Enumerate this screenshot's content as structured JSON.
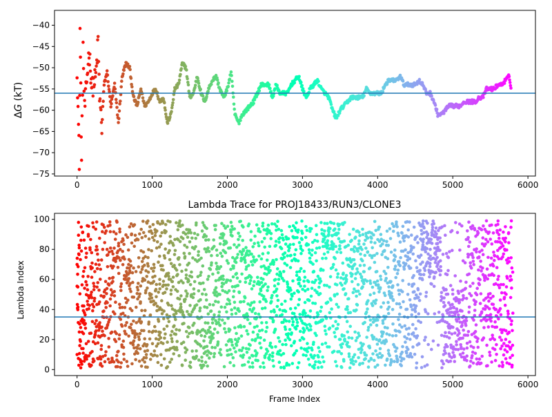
{
  "chart_data": [
    {
      "type": "scatter",
      "title": "",
      "xlabel": "",
      "ylabel": "ΔG (kT)",
      "xlim": [
        -300,
        6100
      ],
      "ylim": [
        -75.5,
        -36.5
      ],
      "x_ticks": [
        0,
        1000,
        2000,
        3000,
        4000,
        5000,
        6000
      ],
      "y_ticks": [
        -75,
        -70,
        -65,
        -60,
        -55,
        -50,
        -45,
        -40
      ],
      "x_tick_labels": [
        "0",
        "1000",
        "2000",
        "3000",
        "4000",
        "5000",
        "6000"
      ],
      "y_tick_labels": [
        "−75",
        "−70",
        "−65",
        "−60",
        "−55",
        "−50",
        "−45",
        "−40"
      ],
      "reference_line": -56,
      "colormap": "rainbow (red at frame 0 → violet at last frame)",
      "frames": 5800,
      "trace_points": [
        [
          0,
          -50
        ],
        [
          20,
          -64
        ],
        [
          30,
          -72
        ],
        [
          40,
          -41
        ],
        [
          50,
          -55
        ],
        [
          60,
          -73
        ],
        [
          80,
          -45
        ],
        [
          100,
          -60
        ],
        [
          130,
          -53
        ],
        [
          160,
          -46
        ],
        [
          200,
          -55
        ],
        [
          250,
          -52
        ],
        [
          280,
          -44
        ],
        [
          300,
          -57
        ],
        [
          330,
          -64
        ],
        [
          360,
          -54
        ],
        [
          400,
          -51
        ],
        [
          450,
          -59
        ],
        [
          500,
          -54
        ],
        [
          550,
          -63
        ],
        [
          600,
          -52
        ],
        [
          650,
          -49
        ],
        [
          700,
          -50
        ],
        [
          750,
          -57
        ],
        [
          800,
          -59
        ],
        [
          850,
          -55
        ],
        [
          900,
          -59
        ],
        [
          950,
          -58
        ],
        [
          1000,
          -56
        ],
        [
          1050,
          -55
        ],
        [
          1100,
          -58
        ],
        [
          1150,
          -57
        ],
        [
          1200,
          -63
        ],
        [
          1250,
          -61
        ],
        [
          1300,
          -55
        ],
        [
          1350,
          -54
        ],
        [
          1400,
          -49
        ],
        [
          1450,
          -50
        ],
        [
          1500,
          -57
        ],
        [
          1550,
          -56
        ],
        [
          1600,
          -52
        ],
        [
          1650,
          -56
        ],
        [
          1700,
          -58
        ],
        [
          1750,
          -55
        ],
        [
          1800,
          -53
        ],
        [
          1850,
          -52
        ],
        [
          1900,
          -55
        ],
        [
          1950,
          -57
        ],
        [
          2000,
          -55
        ],
        [
          2050,
          -51
        ],
        [
          2100,
          -61
        ],
        [
          2150,
          -63
        ],
        [
          2200,
          -61
        ],
        [
          2250,
          -60
        ],
        [
          2300,
          -59
        ],
        [
          2350,
          -58
        ],
        [
          2400,
          -56
        ],
        [
          2450,
          -54
        ],
        [
          2500,
          -54
        ],
        [
          2550,
          -54
        ],
        [
          2600,
          -57
        ],
        [
          2650,
          -54
        ],
        [
          2700,
          -56
        ],
        [
          2750,
          -56
        ],
        [
          2800,
          -56
        ],
        [
          2850,
          -54
        ],
        [
          2900,
          -53
        ],
        [
          2950,
          -52
        ],
        [
          3000,
          -55
        ],
        [
          3050,
          -57
        ],
        [
          3100,
          -55
        ],
        [
          3150,
          -54
        ],
        [
          3200,
          -53
        ],
        [
          3250,
          -55
        ],
        [
          3300,
          -56
        ],
        [
          3350,
          -57
        ],
        [
          3400,
          -60
        ],
        [
          3450,
          -62
        ],
        [
          3500,
          -60
        ],
        [
          3550,
          -59
        ],
        [
          3600,
          -58
        ],
        [
          3650,
          -57
        ],
        [
          3700,
          -57
        ],
        [
          3750,
          -57
        ],
        [
          3800,
          -57
        ],
        [
          3850,
          -55
        ],
        [
          3900,
          -56
        ],
        [
          3950,
          -56
        ],
        [
          4000,
          -56
        ],
        [
          4050,
          -56
        ],
        [
          4100,
          -54
        ],
        [
          4150,
          -53
        ],
        [
          4200,
          -53
        ],
        [
          4250,
          -53
        ],
        [
          4300,
          -52
        ],
        [
          4350,
          -54
        ],
        [
          4400,
          -54
        ],
        [
          4450,
          -54
        ],
        [
          4500,
          -54
        ],
        [
          4550,
          -53
        ],
        [
          4600,
          -54
        ],
        [
          4650,
          -56
        ],
        [
          4700,
          -56
        ],
        [
          4750,
          -58
        ],
        [
          4800,
          -61
        ],
        [
          4850,
          -61
        ],
        [
          4900,
          -60
        ],
        [
          4950,
          -59
        ],
        [
          5000,
          -59
        ],
        [
          5050,
          -59
        ],
        [
          5100,
          -59
        ],
        [
          5150,
          -58
        ],
        [
          5200,
          -58
        ],
        [
          5250,
          -58
        ],
        [
          5300,
          -58
        ],
        [
          5350,
          -57
        ],
        [
          5400,
          -57
        ],
        [
          5450,
          -55
        ],
        [
          5500,
          -55
        ],
        [
          5550,
          -55
        ],
        [
          5600,
          -54
        ],
        [
          5650,
          -54
        ],
        [
          5700,
          -53
        ],
        [
          5750,
          -52
        ],
        [
          5780,
          -55
        ]
      ]
    },
    {
      "type": "scatter",
      "title": "Lambda Trace for PROJ18433/RUN3/CLONE3",
      "xlabel": "Frame Index",
      "ylabel": "Lambda Index",
      "xlim": [
        -300,
        6100
      ],
      "ylim": [
        -4,
        104
      ],
      "x_ticks": [
        0,
        1000,
        2000,
        3000,
        4000,
        5000,
        6000
      ],
      "y_ticks": [
        0,
        20,
        40,
        60,
        80,
        100
      ],
      "x_tick_labels": [
        "0",
        "1000",
        "2000",
        "3000",
        "4000",
        "5000",
        "6000"
      ],
      "y_tick_labels": [
        "0",
        "20",
        "40",
        "60",
        "80",
        "100"
      ],
      "reference_line": 35,
      "colormap": "rainbow (red at frame 0 → violet at last frame)",
      "frames": 5800,
      "lambda_range": [
        1,
        99
      ],
      "sample_points": [
        [
          0,
          10
        ],
        [
          0,
          70
        ],
        [
          10,
          55
        ],
        [
          20,
          98
        ],
        [
          30,
          25
        ],
        [
          50,
          5
        ],
        [
          80,
          62
        ],
        [
          100,
          30
        ],
        [
          150,
          90
        ],
        [
          200,
          12
        ],
        [
          300,
          45
        ],
        [
          400,
          80
        ],
        [
          500,
          20
        ],
        [
          700,
          95
        ],
        [
          900,
          5
        ],
        [
          1100,
          60
        ],
        [
          1300,
          35
        ],
        [
          1500,
          85
        ],
        [
          1700,
          15
        ],
        [
          1900,
          50
        ],
        [
          2050,
          98
        ],
        [
          2100,
          72
        ],
        [
          2300,
          40
        ],
        [
          2500,
          8
        ],
        [
          2700,
          65
        ],
        [
          2900,
          28
        ],
        [
          3100,
          92
        ],
        [
          3350,
          90
        ],
        [
          3400,
          84
        ],
        [
          3600,
          18
        ],
        [
          3800,
          55
        ],
        [
          4000,
          3
        ],
        [
          4200,
          40
        ],
        [
          4400,
          75
        ],
        [
          4600,
          97
        ],
        [
          4700,
          80
        ],
        [
          4800,
          70
        ],
        [
          4950,
          30
        ],
        [
          5100,
          10
        ],
        [
          5300,
          45
        ],
        [
          5500,
          20
        ],
        [
          5600,
          60
        ],
        [
          5700,
          85
        ],
        [
          5780,
          99
        ]
      ]
    }
  ]
}
